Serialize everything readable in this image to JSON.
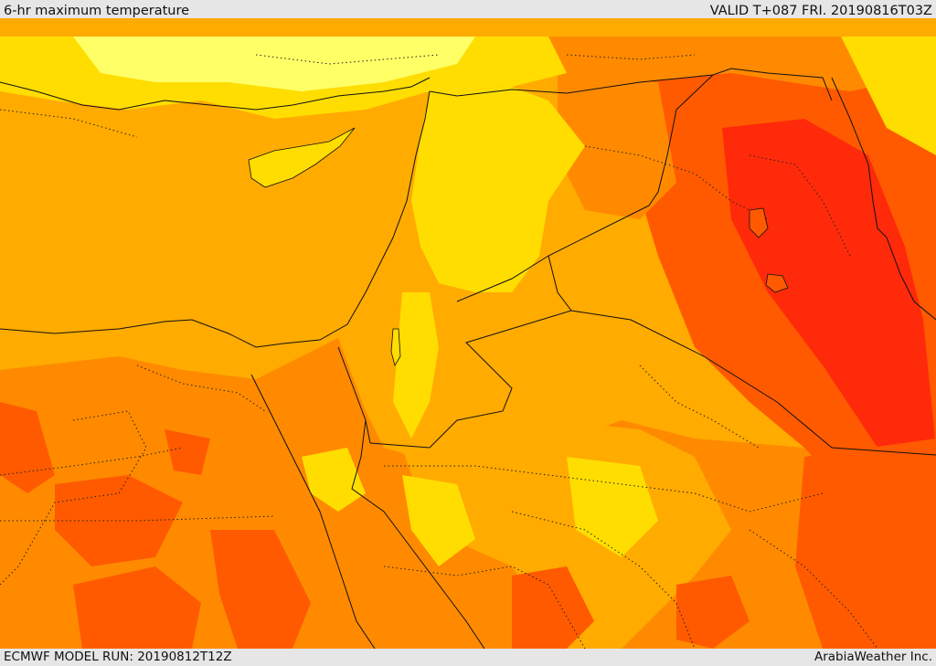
{
  "header": {
    "title": "6-hr maximum temperature",
    "valid": "VALID T+087 FRI. 20190816T03Z"
  },
  "footer": {
    "model_run": "ECMWF MODEL RUN: 20190812T12Z",
    "credit": "ArabiaWeather Inc."
  },
  "colors": {
    "sea": "#ffab00",
    "pale_yellow": "#ffff66",
    "yellow": "#ffdd00",
    "light_orange": "#ffab00",
    "orange": "#ff8a00",
    "dark_orange": "#ff5a00",
    "red": "#ff2a0a",
    "border_line": "#111111"
  }
}
